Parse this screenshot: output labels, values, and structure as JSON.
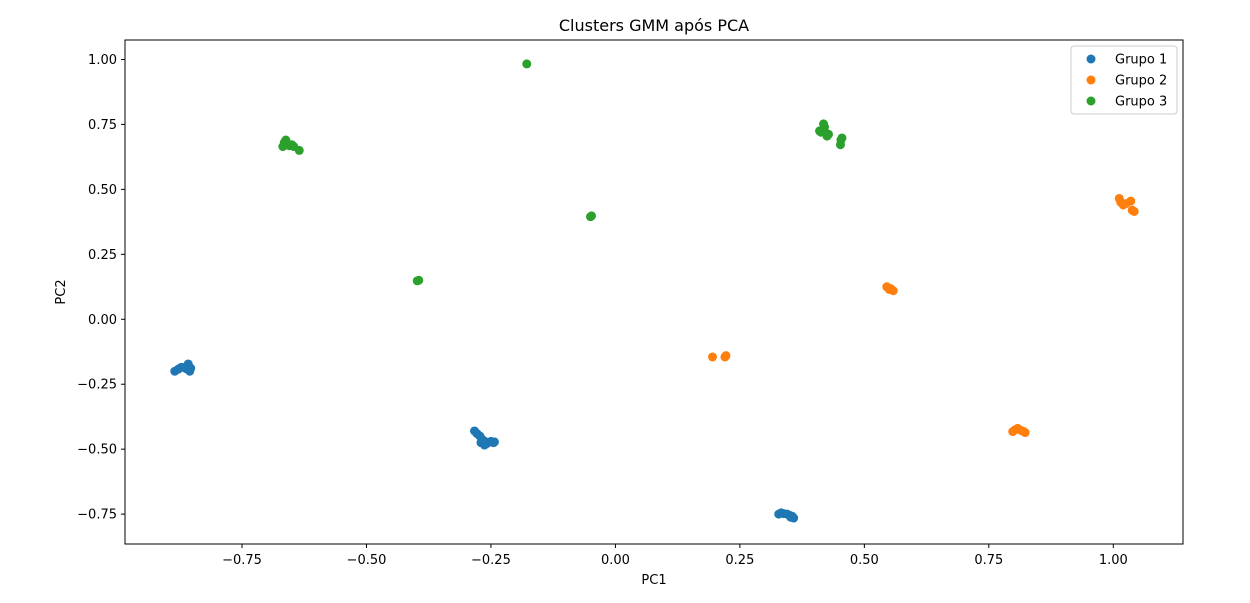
{
  "chart_data": {
    "type": "scatter",
    "title": "Clusters GMM após PCA",
    "xlabel": "PC1",
    "ylabel": "PC2",
    "xlim": [
      -0.985,
      1.14
    ],
    "ylim": [
      -0.865,
      1.075
    ],
    "xticks": [
      -0.75,
      -0.5,
      -0.25,
      0.0,
      0.25,
      0.5,
      0.75,
      1.0
    ],
    "xtick_labels": [
      "−0.75",
      "−0.50",
      "−0.25",
      "0.00",
      "0.25",
      "0.50",
      "0.75",
      "1.00"
    ],
    "yticks": [
      -0.75,
      -0.5,
      -0.25,
      0.0,
      0.25,
      0.5,
      0.75,
      1.0
    ],
    "ytick_labels": [
      "−0.75",
      "−0.50",
      "−0.25",
      "0.00",
      "0.25",
      "0.50",
      "0.75",
      "1.00"
    ],
    "grid": false,
    "legend_position": "top-right",
    "series": [
      {
        "name": "Grupo 1",
        "color": "#1f77b4",
        "points": [
          [
            -0.885,
            -0.2
          ],
          [
            -0.878,
            -0.192
          ],
          [
            -0.872,
            -0.185
          ],
          [
            -0.862,
            -0.19
          ],
          [
            -0.858,
            -0.172
          ],
          [
            -0.855,
            -0.2
          ],
          [
            -0.853,
            -0.188
          ],
          [
            -0.866,
            -0.185
          ],
          [
            -0.283,
            -0.43
          ],
          [
            -0.278,
            -0.44
          ],
          [
            -0.272,
            -0.45
          ],
          [
            -0.268,
            -0.462
          ],
          [
            -0.27,
            -0.475
          ],
          [
            -0.262,
            -0.47
          ],
          [
            -0.258,
            -0.478
          ],
          [
            -0.263,
            -0.484
          ],
          [
            -0.25,
            -0.47
          ],
          [
            -0.245,
            -0.475
          ],
          [
            -0.243,
            -0.472
          ],
          [
            0.328,
            -0.75
          ],
          [
            0.333,
            -0.745
          ],
          [
            0.338,
            -0.748
          ],
          [
            0.345,
            -0.75
          ],
          [
            0.35,
            -0.755
          ],
          [
            0.355,
            -0.758
          ],
          [
            0.358,
            -0.765
          ],
          [
            0.352,
            -0.762
          ]
        ]
      },
      {
        "name": "Grupo 2",
        "color": "#ff7f0e",
        "points": [
          [
            0.195,
            -0.145
          ],
          [
            0.22,
            -0.145
          ],
          [
            0.222,
            -0.14
          ],
          [
            0.545,
            0.125
          ],
          [
            0.55,
            0.115
          ],
          [
            0.558,
            0.11
          ],
          [
            0.553,
            0.118
          ],
          [
            0.798,
            -0.432
          ],
          [
            0.803,
            -0.425
          ],
          [
            0.808,
            -0.42
          ],
          [
            0.815,
            -0.428
          ],
          [
            0.82,
            -0.432
          ],
          [
            0.823,
            -0.436
          ],
          [
            1.012,
            0.465
          ],
          [
            1.015,
            0.45
          ],
          [
            1.02,
            0.44
          ],
          [
            1.025,
            0.445
          ],
          [
            1.035,
            0.455
          ],
          [
            1.038,
            0.42
          ],
          [
            1.042,
            0.415
          ]
        ]
      },
      {
        "name": "Grupo 3",
        "color": "#2ca02c",
        "points": [
          [
            -0.668,
            0.665
          ],
          [
            -0.665,
            0.68
          ],
          [
            -0.662,
            0.69
          ],
          [
            -0.658,
            0.675
          ],
          [
            -0.655,
            0.668
          ],
          [
            -0.65,
            0.672
          ],
          [
            -0.646,
            0.665
          ],
          [
            -0.635,
            0.65
          ],
          [
            -0.398,
            0.148
          ],
          [
            -0.395,
            0.15
          ],
          [
            -0.178,
            0.983
          ],
          [
            -0.05,
            0.395
          ],
          [
            -0.048,
            0.398
          ],
          [
            0.41,
            0.725
          ],
          [
            0.413,
            0.72
          ],
          [
            0.418,
            0.752
          ],
          [
            0.42,
            0.74
          ],
          [
            0.422,
            0.718
          ],
          [
            0.425,
            0.705
          ],
          [
            0.428,
            0.712
          ],
          [
            0.452,
            0.672
          ],
          [
            0.455,
            0.698
          ],
          [
            0.453,
            0.69
          ]
        ]
      }
    ]
  }
}
